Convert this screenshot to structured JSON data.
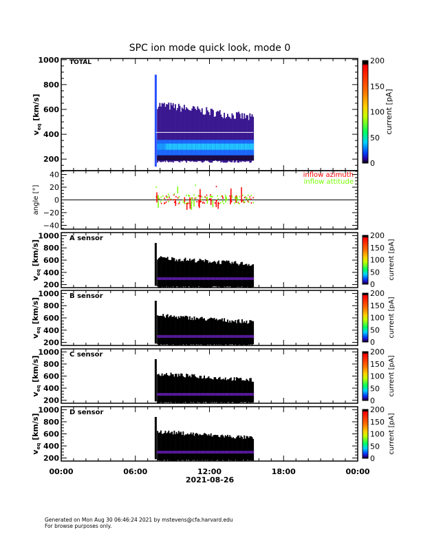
{
  "chart_data": {
    "type": "heatmap",
    "title": "SPC ion mode quick look, mode 0",
    "x_date_label": "2021-08-26",
    "x_tick_labels": [
      "00:00",
      "06:00",
      "12:00",
      "18:00",
      "00:00"
    ],
    "x_tick_hours": [
      0,
      6,
      12,
      18,
      24
    ],
    "xlim_hours": [
      0,
      24
    ],
    "data_time_range_hours": [
      7.65,
      15.55
    ],
    "colorbar": {
      "label": "current [pA]",
      "ticks": [
        0,
        50,
        100,
        150,
        200
      ],
      "range": [
        0,
        200
      ]
    },
    "panels": [
      {
        "id": "total",
        "label": "TOTAL",
        "ylabel_main": "v",
        "ylabel_sub": "eq",
        "ylabel_unit": "[km/s]",
        "yticks": [
          200,
          400,
          600,
          800,
          1000
        ],
        "ylim": [
          107,
          1010
        ],
        "distribution": {
          "vmin": 190,
          "vmax_start": 640,
          "vmax_end": 530,
          "core_velocity": 300,
          "core_width": 60,
          "spike_time": 7.65,
          "spike_vmax": 880
        }
      },
      {
        "id": "angle",
        "label": "",
        "ylabel_main": "angle [°]",
        "yticks": [
          -40,
          -20,
          0,
          20,
          40
        ],
        "ylim": [
          -46,
          46
        ],
        "legend": [
          {
            "name": "inflow azimuth",
            "color": "#ff0000"
          },
          {
            "name": "inflow attitude",
            "color": "#77ff00"
          }
        ],
        "typical_range": [
          -5,
          10
        ]
      },
      {
        "id": "A",
        "label": "A sensor",
        "ylabel_main": "v",
        "ylabel_sub": "eq",
        "ylabel_unit": "[km/s]",
        "yticks": [
          200,
          400,
          600,
          800,
          1000
        ],
        "ylim": [
          150,
          1050
        ],
        "distribution": {
          "vmin": 170,
          "vmax_start": 640,
          "vmax_end": 530,
          "core_velocity": 305,
          "spike_time": 7.65,
          "spike_vmax": 880
        }
      },
      {
        "id": "B",
        "label": "B sensor",
        "ylabel_main": "v",
        "ylabel_sub": "eq",
        "ylabel_unit": "[km/s]",
        "yticks": [
          200,
          400,
          600,
          800,
          1000
        ],
        "ylim": [
          150,
          1050
        ],
        "distribution": {
          "vmin": 170,
          "vmax_start": 640,
          "vmax_end": 530,
          "core_velocity": 305,
          "spike_time": 7.65,
          "spike_vmax": 880
        }
      },
      {
        "id": "C",
        "label": "C sensor",
        "ylabel_main": "v",
        "ylabel_sub": "eq",
        "ylabel_unit": "[km/s]",
        "yticks": [
          200,
          400,
          600,
          800,
          1000
        ],
        "ylim": [
          150,
          1050
        ],
        "distribution": {
          "vmin": 170,
          "vmax_start": 640,
          "vmax_end": 530,
          "core_velocity": 305,
          "spike_time": 7.65,
          "spike_vmax": 880
        }
      },
      {
        "id": "D",
        "label": "D sensor",
        "ylabel_main": "v",
        "ylabel_sub": "eq",
        "ylabel_unit": "[km/s]",
        "yticks": [
          200,
          400,
          600,
          800,
          1000
        ],
        "ylim": [
          150,
          1050
        ],
        "distribution": {
          "vmin": 170,
          "vmax_start": 640,
          "vmax_end": 530,
          "core_velocity": 305,
          "spike_time": 7.65,
          "spike_vmax": 880
        }
      }
    ]
  },
  "footer": {
    "line1": "Generated on Mon Aug 30 06:46:24 2021 by mstevens@cfa.harvard.edu",
    "line2": "For browse purposes only."
  }
}
